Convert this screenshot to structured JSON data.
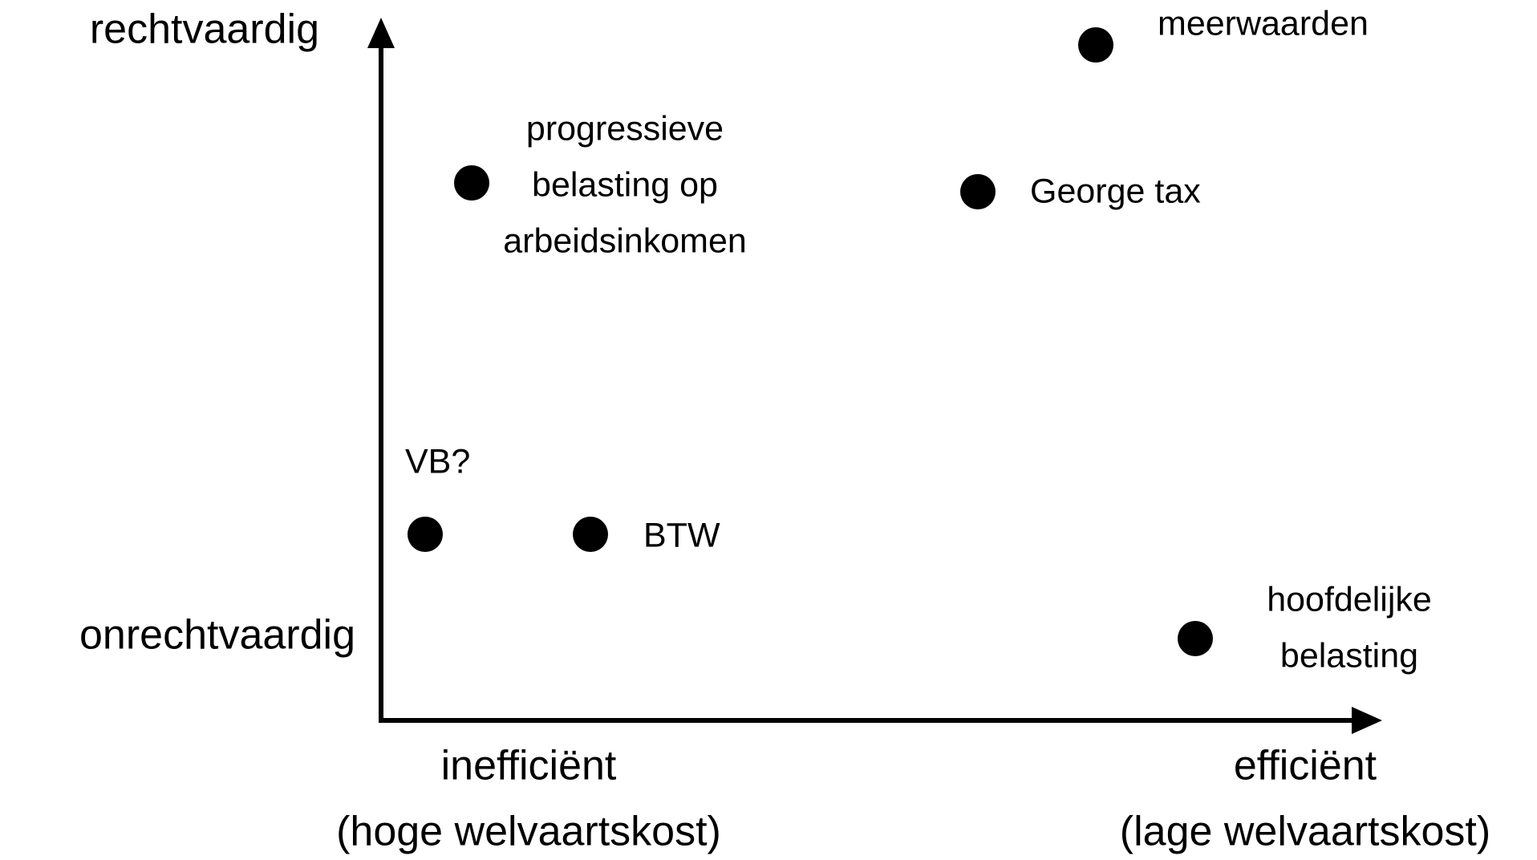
{
  "axes": {
    "y_top": "rechtvaardig",
    "y_bottom": "onrechtvaardig",
    "x_left": [
      "inefficiënt",
      "(hoge welvaartskost)"
    ],
    "x_right": [
      "efficiënt",
      "(lage welvaartskost)"
    ]
  },
  "nodes": [
    {
      "label": [
        "meerwaarden"
      ]
    },
    {
      "label": [
        "progressieve",
        "belasting op",
        "arbeidsinkomen"
      ]
    },
    {
      "label": [
        "George tax"
      ]
    },
    {
      "label": [
        "VB?"
      ]
    },
    {
      "label": [
        "BTW"
      ]
    },
    {
      "label": [
        "hoofdelijke",
        "belasting"
      ]
    }
  ]
}
